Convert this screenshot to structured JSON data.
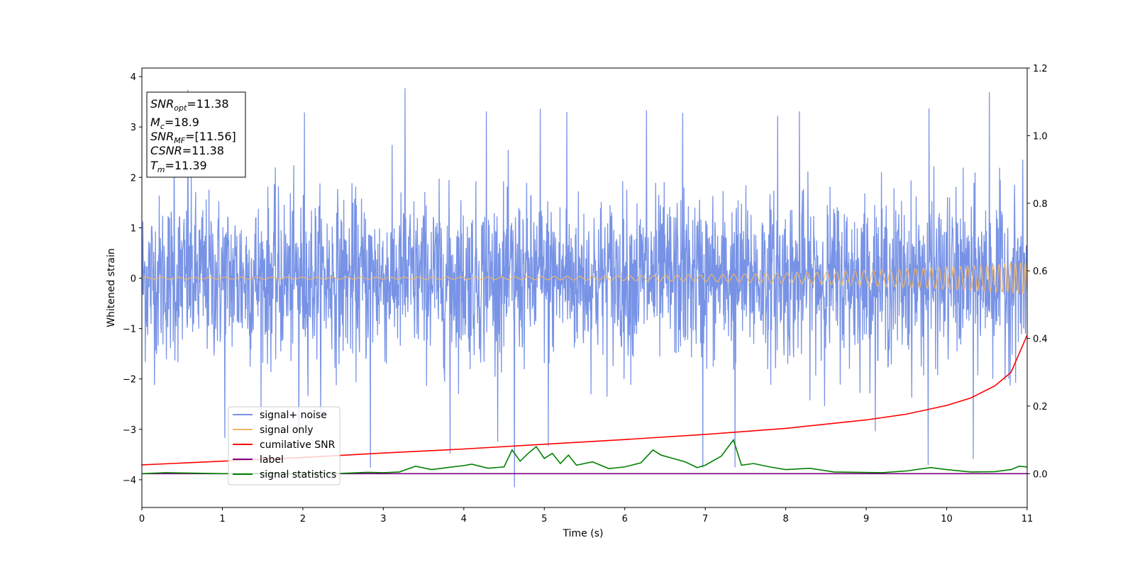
{
  "chart_data": {
    "type": "line",
    "xlabel": "Time (s)",
    "ylabel": "Whitened strain",
    "xlim": [
      0,
      11
    ],
    "ylim": [
      -4.55,
      4.17
    ],
    "y2lim": [
      -0.1,
      1.2
    ],
    "x_ticks": [
      0,
      1,
      2,
      3,
      4,
      5,
      6,
      7,
      8,
      9,
      10,
      11
    ],
    "y_ticks": [
      -4,
      -3,
      -2,
      -1,
      0,
      1,
      2,
      3,
      4
    ],
    "y_tick_labels": [
      "−4",
      "−3",
      "−2",
      "−1",
      "0",
      "1",
      "2",
      "3",
      "4"
    ],
    "y2_ticks": [
      0.0,
      0.2,
      0.4,
      0.6,
      0.8,
      1.0,
      1.2
    ],
    "y2_tick_labels": [
      "0.0",
      "0.2",
      "0.4",
      "0.6",
      "0.8",
      "1.0",
      "1.2"
    ],
    "grid": false,
    "legend_position": "lower-left",
    "info_box": {
      "snr_opt": {
        "sym": "SNR",
        "sub": "opt",
        "value": "=11.38"
      },
      "mc": {
        "sym": "M",
        "sub": "c",
        "value": "=18.9"
      },
      "snr_mf": {
        "sym": "SNR",
        "sub": "MF",
        "value": "=[11.56]"
      },
      "csnr": {
        "sym": "CSNR",
        "value": "=11.38"
      },
      "tm": {
        "sym": "T",
        "sub": "m",
        "value": "=11.39"
      }
    },
    "series": [
      {
        "name": "signal+ noise",
        "color": "#7893e6",
        "axis": "left",
        "envelope": {
          "typical_amplitude": 2.1,
          "max_amplitude": 3.78,
          "min_value": -4.15
        },
        "spikes": [
          [
            0.57,
            3.74
          ],
          [
            3.27,
            3.77
          ],
          [
            4.63,
            -4.15
          ],
          [
            2.84,
            -3.76
          ],
          [
            0.4,
            2.8
          ],
          [
            1.03,
            -3.17
          ],
          [
            1.95,
            -3.35
          ],
          [
            3.83,
            -3.48
          ],
          [
            5.05,
            -3.33
          ],
          [
            6.97,
            -3.76
          ],
          [
            7.37,
            -3.75
          ],
          [
            9.77,
            -3.71
          ],
          [
            10.33,
            -3.58
          ],
          [
            10.53,
            3.69
          ],
          [
            9.78,
            3.37
          ],
          [
            8.17,
            3.31
          ],
          [
            7.9,
            3.22
          ],
          [
            4.28,
            3.31
          ],
          [
            4.95,
            3.36
          ],
          [
            5.28,
            3.3
          ],
          [
            2.02,
            3.29
          ],
          [
            6.27,
            3.33
          ],
          [
            6.72,
            3.28
          ]
        ]
      },
      {
        "name": "signal only",
        "color": "#f5b762",
        "axis": "left",
        "chirp": {
          "amplitude_start": 0.02,
          "amplitude_end": 0.31,
          "merger_time": 11.39
        }
      },
      {
        "name": "cumilative SNR",
        "color": "#ff0000",
        "axis": "right",
        "x": [
          0,
          1,
          2,
          3,
          4,
          5,
          6,
          7,
          8,
          9,
          9.5,
          10,
          10.3,
          10.6,
          10.8,
          11
        ],
        "y": [
          0.026,
          0.037,
          0.048,
          0.061,
          0.073,
          0.087,
          0.101,
          0.116,
          0.134,
          0.159,
          0.176,
          0.202,
          0.224,
          0.26,
          0.3,
          0.41
        ]
      },
      {
        "name": "label",
        "color": "#800080",
        "axis": "right",
        "x": [
          0,
          11
        ],
        "y": [
          0.0,
          0.0
        ]
      },
      {
        "name": "signal statistics",
        "color": "#008000",
        "axis": "right",
        "x": [
          0,
          0.3,
          0.5,
          1.0,
          1.5,
          2.0,
          2.5,
          2.8,
          3.0,
          3.2,
          3.4,
          3.6,
          3.8,
          4.0,
          4.1,
          4.3,
          4.5,
          4.6,
          4.7,
          4.8,
          4.9,
          5.0,
          5.1,
          5.2,
          5.3,
          5.4,
          5.6,
          5.8,
          6.0,
          6.2,
          6.35,
          6.45,
          6.6,
          6.75,
          6.9,
          7.0,
          7.2,
          7.35,
          7.45,
          7.6,
          7.8,
          8.0,
          8.3,
          8.6,
          8.9,
          9.2,
          9.5,
          9.8,
          10.0,
          10.3,
          10.6,
          10.8,
          10.9,
          11.0
        ],
        "y": [
          0.0,
          0.003,
          0.002,
          0.0,
          0.001,
          0.0,
          0.001,
          0.004,
          0.003,
          0.005,
          0.022,
          0.012,
          0.018,
          0.024,
          0.028,
          0.016,
          0.02,
          0.07,
          0.037,
          0.06,
          0.08,
          0.045,
          0.06,
          0.03,
          0.055,
          0.025,
          0.035,
          0.015,
          0.02,
          0.032,
          0.07,
          0.055,
          0.045,
          0.035,
          0.018,
          0.025,
          0.052,
          0.1,
          0.025,
          0.03,
          0.02,
          0.012,
          0.016,
          0.005,
          0.004,
          0.003,
          0.008,
          0.018,
          0.012,
          0.005,
          0.006,
          0.012,
          0.022,
          0.02
        ]
      }
    ]
  }
}
